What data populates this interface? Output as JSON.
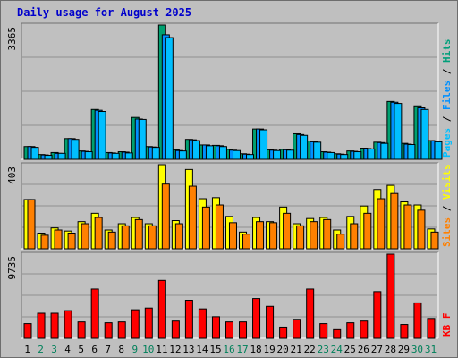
{
  "chart_data": [
    {
      "type": "bar",
      "title": "Daily usage for August 2025",
      "ymax_label": "3365",
      "ylim": [
        0,
        3365
      ],
      "legend": [
        {
          "name": "Pages",
          "color": "#00bfff"
        },
        {
          "name": "Files",
          "color": "#0090ff"
        },
        {
          "name": "Hits",
          "color": "#009f7a"
        }
      ],
      "legend_separator": " / ",
      "categories": [
        "1",
        "2",
        "3",
        "4",
        "5",
        "6",
        "7",
        "8",
        "9",
        "10",
        "11",
        "12",
        "13",
        "14",
        "15",
        "16",
        "17",
        "18",
        "19",
        "20",
        "21",
        "22",
        "23",
        "24",
        "25",
        "26",
        "27",
        "28",
        "29",
        "30",
        "31"
      ],
      "weekend_days": [
        "2",
        "3",
        "9",
        "10",
        "16",
        "17",
        "23",
        "24",
        "30",
        "31"
      ],
      "series": [
        {
          "name": "Hits",
          "color": "#00a070",
          "values": [
            320,
            120,
            170,
            520,
            210,
            1250,
            170,
            190,
            1050,
            320,
            3365,
            240,
            500,
            360,
            350,
            250,
            140,
            760,
            240,
            250,
            640,
            460,
            190,
            140,
            210,
            280,
            430,
            1450,
            400,
            1340,
            470
          ]
        },
        {
          "name": "Files",
          "color": "#0090ff",
          "values": [
            320,
            110,
            150,
            520,
            200,
            1230,
            160,
            180,
            1010,
            310,
            3120,
            220,
            490,
            360,
            340,
            230,
            130,
            760,
            230,
            240,
            620,
            440,
            180,
            130,
            200,
            270,
            420,
            1430,
            380,
            1290,
            460
          ]
        },
        {
          "name": "Pages",
          "color": "#00bfff",
          "values": [
            300,
            100,
            150,
            500,
            190,
            1200,
            150,
            160,
            1000,
            300,
            3050,
            210,
            470,
            340,
            320,
            220,
            120,
            740,
            220,
            230,
            600,
            430,
            170,
            120,
            190,
            260,
            400,
            1400,
            370,
            1250,
            440
          ]
        }
      ]
    },
    {
      "type": "bar",
      "ymax_label": "403",
      "ylim": [
        0,
        403
      ],
      "legend": [
        {
          "name": "Sites",
          "color": "#ff8000"
        },
        {
          "name": "Visits",
          "color": "#ffff00"
        }
      ],
      "legend_separator": " / ",
      "series": [
        {
          "name": "Visits",
          "color": "#ffff00",
          "values": [
            236,
            75,
            100,
            85,
            130,
            170,
            90,
            120,
            150,
            120,
            403,
            135,
            380,
            240,
            245,
            155,
            80,
            150,
            130,
            200,
            120,
            145,
            150,
            90,
            155,
            205,
            284,
            304,
            225,
            210,
            95
          ]
        },
        {
          "name": "Sites",
          "color": "#ff8000",
          "values": [
            236,
            65,
            90,
            75,
            120,
            150,
            80,
            110,
            140,
            110,
            310,
            120,
            300,
            200,
            210,
            125,
            70,
            130,
            125,
            170,
            110,
            130,
            140,
            70,
            120,
            170,
            240,
            265,
            210,
            185,
            80
          ]
        }
      ]
    },
    {
      "type": "bar",
      "ymax_label": "9735",
      "ylim": [
        0,
        9735
      ],
      "legend": [
        {
          "name": "KB F",
          "color": "#ff0000"
        }
      ],
      "series": [
        {
          "name": "KB F",
          "color": "#ff0000",
          "values": [
            1700,
            2900,
            2900,
            3200,
            1900,
            5700,
            1800,
            1900,
            3300,
            3500,
            6700,
            2000,
            4400,
            3400,
            2500,
            1900,
            1900,
            4600,
            3700,
            1300,
            2200,
            5700,
            1700,
            1000,
            1800,
            2000,
            5400,
            9735,
            1600,
            4100,
            2300
          ]
        }
      ]
    }
  ]
}
